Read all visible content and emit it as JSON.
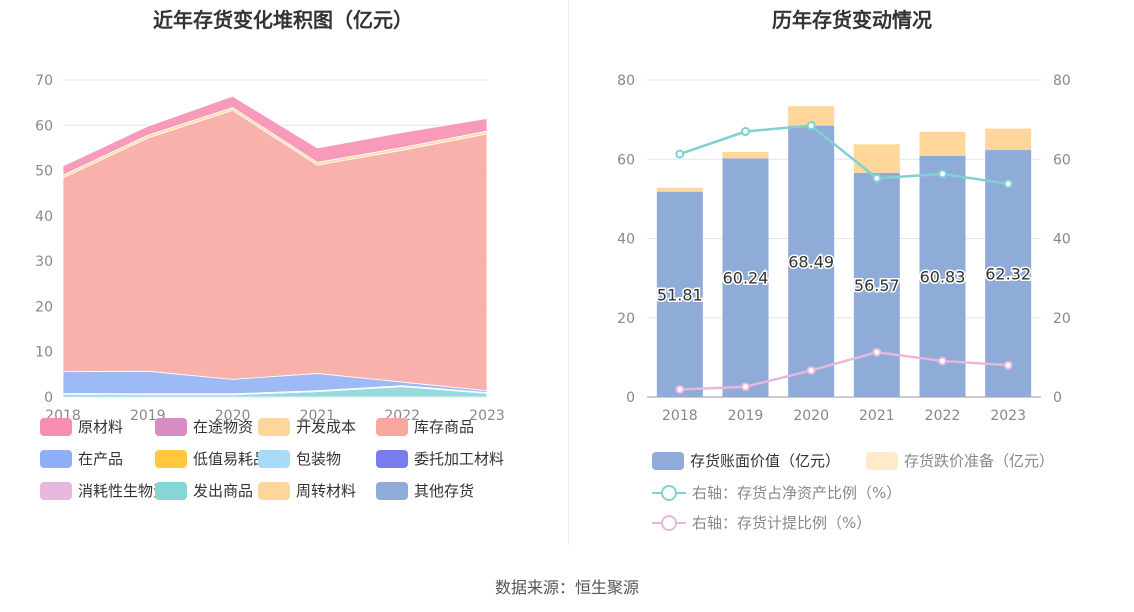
{
  "left_chart": {
    "title": "近年存货变化堆积图（亿元）"
  },
  "right_chart": {
    "title": "历年存货变动情况"
  },
  "source": "数据来源：恒生聚源",
  "chart_data": [
    {
      "type": "area",
      "stacked": true,
      "title": "近年存货变化堆积图（亿元）",
      "categories": [
        "2018",
        "2019",
        "2020",
        "2021",
        "2022",
        "2023"
      ],
      "ylim": [
        0,
        70
      ],
      "yticks": [
        0,
        10,
        20,
        30,
        40,
        50,
        60,
        70
      ],
      "grid": true,
      "series": [
        {
          "name": "原材料",
          "color": "#f78db1",
          "values": [
            2.0,
            2.0,
            2.5,
            3.2,
            3.3,
            2.8
          ]
        },
        {
          "name": "在途物资",
          "color": "#d98bc4",
          "values": [
            0,
            0,
            0,
            0,
            0,
            0
          ]
        },
        {
          "name": "开发成本",
          "color": "#ffd79a",
          "values": [
            0,
            0,
            0,
            0,
            0,
            0
          ]
        },
        {
          "name": "库存商品",
          "color": "#f8a79f",
          "values": [
            42.8,
            51.5,
            59.4,
            46.0,
            51.2,
            56.7
          ]
        },
        {
          "name": "在产品",
          "color": "#8fb0f6",
          "values": [
            4.8,
            5.0,
            3.2,
            3.8,
            0.8,
            0.4
          ]
        },
        {
          "name": "低值易耗品",
          "color": "#ffc93b",
          "values": [
            0,
            0,
            0,
            0,
            0,
            0
          ]
        },
        {
          "name": "包装物",
          "color": "#a6dcf8",
          "values": [
            0.2,
            0.2,
            0.2,
            0.2,
            0.2,
            0.2
          ]
        },
        {
          "name": "委托加工材料",
          "color": "#7a7bec",
          "values": [
            0,
            0,
            0,
            0,
            0,
            0
          ]
        },
        {
          "name": "消耗性生物资产",
          "color": "#e8b8dc",
          "values": [
            0,
            0,
            0,
            0,
            0,
            0
          ]
        },
        {
          "name": "发出商品",
          "color": "#88d5d6",
          "values": [
            0.6,
            0.5,
            0.5,
            1.2,
            2.3,
            0.8
          ]
        },
        {
          "name": "周转材料",
          "color": "#ffd79a",
          "values": [
            0.6,
            0.6,
            0.6,
            0.6,
            0.6,
            0.6
          ]
        },
        {
          "name": "其他存货",
          "color": "#8fabd8",
          "values": [
            0,
            0,
            0,
            0,
            0,
            0
          ]
        }
      ],
      "legend_position": "bottom"
    },
    {
      "type": "bar",
      "stacked": true,
      "title": "历年存货变动情况",
      "categories": [
        "2018",
        "2019",
        "2020",
        "2021",
        "2022",
        "2023"
      ],
      "ylim": [
        0,
        80
      ],
      "yticks": [
        0,
        20,
        40,
        60,
        80
      ],
      "y2lim": [
        0,
        80
      ],
      "y2ticks": [
        0,
        20,
        40,
        60,
        80
      ],
      "grid": true,
      "series": [
        {
          "name": "存货账面价值（亿元）",
          "kind": "bar",
          "color": "#8fabd8",
          "values": [
            51.81,
            60.24,
            68.49,
            56.57,
            60.83,
            62.32
          ],
          "labels": [
            "51.81",
            "60.24",
            "68.49",
            "56.57",
            "60.83",
            "62.32"
          ]
        },
        {
          "name": "存货跌价准备（亿元）",
          "kind": "bar",
          "color": "#ffd79a",
          "values": [
            1.0,
            1.6,
            4.9,
            7.2,
            6.1,
            5.4
          ]
        },
        {
          "name": "右轴：存货占净资产比例（%）",
          "kind": "line",
          "axis": "right",
          "color": "#7fd1d4",
          "values": [
            61.3,
            67.0,
            68.5,
            55.2,
            56.3,
            53.8
          ]
        },
        {
          "name": "右轴：存货计提比例（%）",
          "kind": "line",
          "axis": "right",
          "color": "#e8b8dc",
          "values": [
            1.9,
            2.6,
            6.7,
            11.3,
            9.1,
            8.0
          ]
        }
      ],
      "legend_position": "bottom"
    }
  ]
}
